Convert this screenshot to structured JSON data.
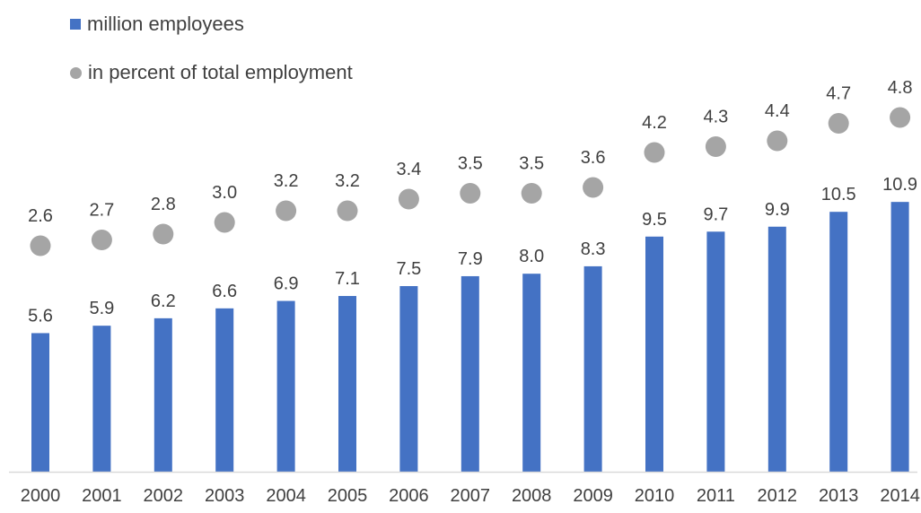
{
  "chart_data": {
    "type": "bar",
    "categories": [
      "2000",
      "2001",
      "2002",
      "2003",
      "2004",
      "2005",
      "2006",
      "2007",
      "2008",
      "2009",
      "2010",
      "2011",
      "2012",
      "2013",
      "2014"
    ],
    "series": [
      {
        "name": "million employees",
        "type": "bar",
        "color": "#4472C4",
        "values": [
          5.6,
          5.9,
          6.2,
          6.6,
          6.9,
          7.1,
          7.5,
          7.9,
          8.0,
          8.3,
          9.5,
          9.7,
          9.9,
          10.5,
          10.9
        ],
        "labels": [
          "5.6",
          "5.9",
          "6.2",
          "6.6",
          "6.9",
          "7.1",
          "7.5",
          "7.9",
          "8.0",
          "8.3",
          "9.5",
          "9.7",
          "9.9",
          "10.5",
          "10.9"
        ]
      },
      {
        "name": "in percent of total employment",
        "type": "scatter",
        "color": "#A5A5A5",
        "values": [
          2.6,
          2.7,
          2.8,
          3.0,
          3.2,
          3.2,
          3.4,
          3.5,
          3.5,
          3.6,
          4.2,
          4.3,
          4.4,
          4.7,
          4.8
        ],
        "labels": [
          "2.6",
          "2.7",
          "2.8",
          "3.0",
          "3.2",
          "3.2",
          "3.4",
          "3.5",
          "3.5",
          "3.6",
          "4.2",
          "4.3",
          "4.4",
          "4.7",
          "4.8"
        ]
      }
    ],
    "legend": "top-left",
    "grid": false,
    "axis_color": "#D9D9D9"
  }
}
